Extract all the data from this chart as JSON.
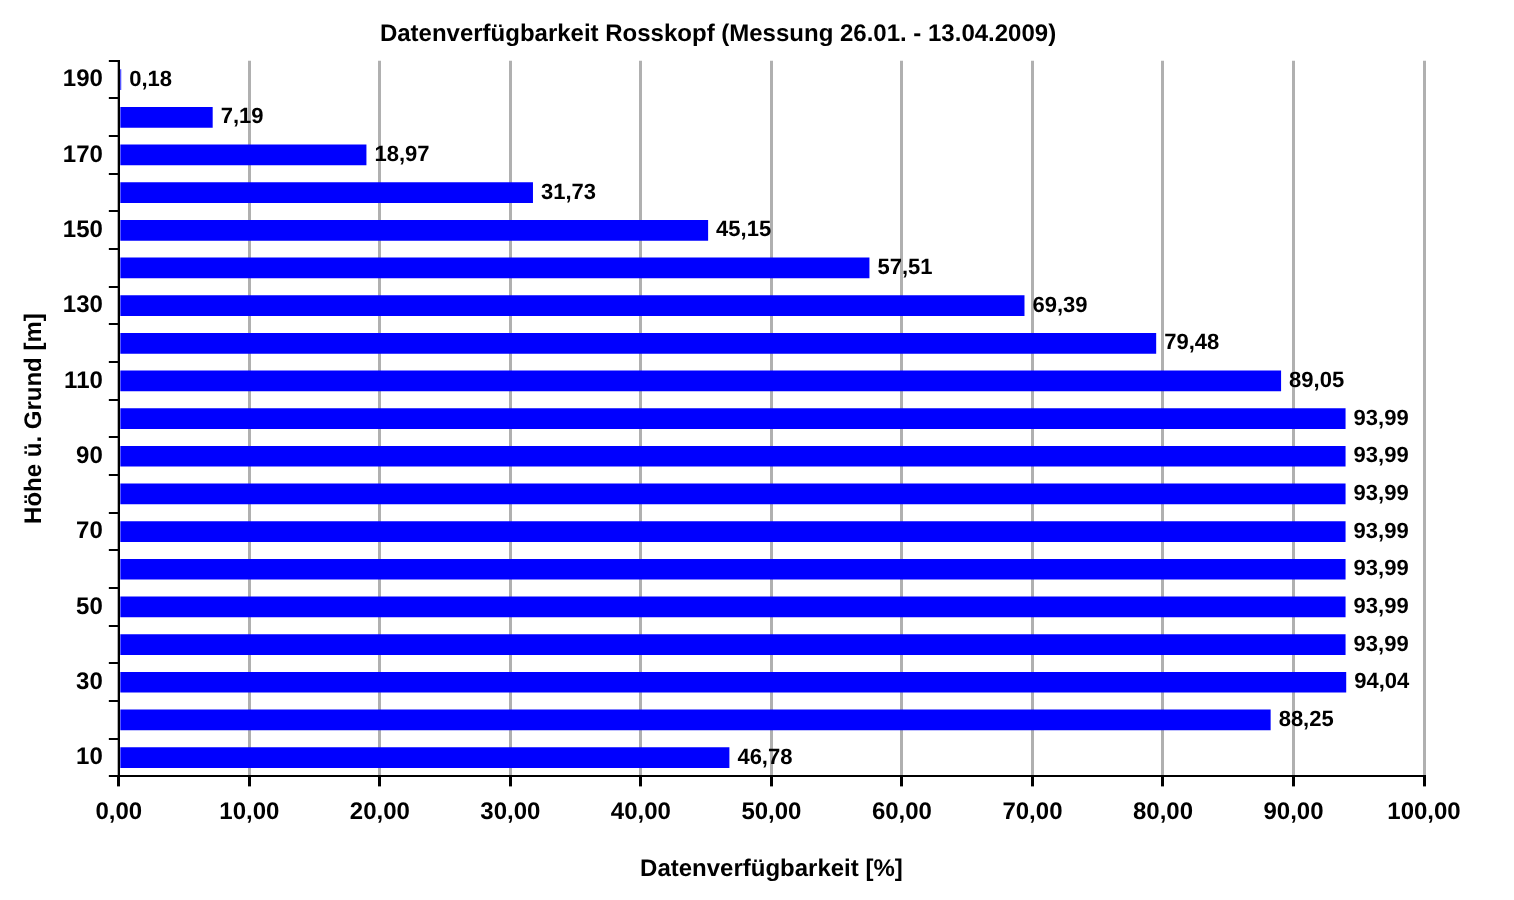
{
  "chart_data": {
    "type": "bar",
    "orientation": "horizontal",
    "title": "Datenverfügbarkeit Rosskopf (Messung 26.01. - 13.04.2009)",
    "xlabel": "Datenverfügbarkeit [%]",
    "ylabel": "Höhe ü. Grund [m]",
    "categories": [
      "190",
      null,
      "170",
      null,
      "150",
      null,
      "130",
      null,
      "110",
      null,
      "90",
      null,
      "70",
      null,
      "50",
      null,
      "30",
      null,
      "10"
    ],
    "values": [
      0.18,
      7.19,
      18.97,
      31.73,
      45.15,
      57.51,
      69.39,
      79.48,
      89.05,
      93.99,
      93.99,
      93.99,
      93.99,
      93.99,
      93.99,
      93.99,
      94.04,
      88.25,
      46.78
    ],
    "value_labels": [
      "0,18",
      "7,19",
      "18,97",
      "31,73",
      "45,15",
      "57,51",
      "69,39",
      "79,48",
      "89,05",
      "93,99",
      "93,99",
      "93,99",
      "93,99",
      "93,99",
      "93,99",
      "93,99",
      "94,04",
      "88,25",
      "46,78"
    ],
    "color": "#0000ff",
    "xlim": [
      0,
      100
    ],
    "xticks": [
      {
        "value": 0,
        "label": "0,00"
      },
      {
        "value": 10,
        "label": "10,00"
      },
      {
        "value": 20,
        "label": "20,00"
      },
      {
        "value": 30,
        "label": "30,00"
      },
      {
        "value": 40,
        "label": "40,00"
      },
      {
        "value": 50,
        "label": "50,00"
      },
      {
        "value": 60,
        "label": "60,00"
      },
      {
        "value": 70,
        "label": "70,00"
      },
      {
        "value": 80,
        "label": "80,00"
      },
      {
        "value": 90,
        "label": "90,00"
      },
      {
        "value": 100,
        "label": "100,00"
      }
    ],
    "grid": "x",
    "legend": false
  }
}
